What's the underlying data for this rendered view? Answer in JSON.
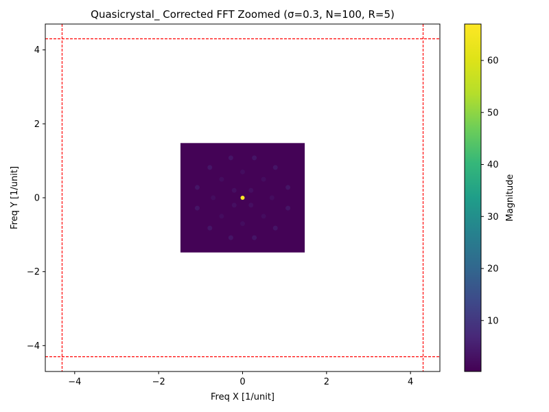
{
  "chart_data": {
    "type": "heatmap",
    "title": "Quasicrystal_ Corrected FFT Zoomed (σ=0.3, N=100, R=5)",
    "xlabel": "Freq X [1/unit]",
    "ylabel": "Freq Y [1/unit]",
    "xlim": [
      -4.7,
      4.7
    ],
    "ylim": [
      -4.7,
      4.7
    ],
    "x_ticks": [
      -4,
      -2,
      0,
      2,
      4
    ],
    "y_ticks": [
      -4,
      -2,
      0,
      2,
      4
    ],
    "x_tick_labels": [
      "−4",
      "−2",
      "0",
      "2",
      "4"
    ],
    "y_tick_labels": [
      "−4",
      "−2",
      "0",
      "2",
      "4"
    ],
    "grid": false,
    "heatmap_extent": {
      "x": [
        -1.48,
        1.48
      ],
      "y": [
        -1.48,
        1.48
      ]
    },
    "background_magnitude": 0.5,
    "peaks": [
      {
        "x": 0.0,
        "y": 0.0,
        "magnitude": 67
      },
      {
        "x": -0.28,
        "y": 1.08,
        "magnitude": 4
      },
      {
        "x": 0.28,
        "y": 1.08,
        "magnitude": 4
      },
      {
        "x": -0.78,
        "y": 0.82,
        "magnitude": 4
      },
      {
        "x": 0.78,
        "y": 0.82,
        "magnitude": 4
      },
      {
        "x": -1.08,
        "y": 0.28,
        "magnitude": 4
      },
      {
        "x": 1.08,
        "y": 0.28,
        "magnitude": 4
      },
      {
        "x": -1.08,
        "y": -0.28,
        "magnitude": 4
      },
      {
        "x": 1.08,
        "y": -0.28,
        "magnitude": 4
      },
      {
        "x": -0.78,
        "y": -0.82,
        "magnitude": 4
      },
      {
        "x": 0.78,
        "y": -0.82,
        "magnitude": 4
      },
      {
        "x": -0.28,
        "y": -1.08,
        "magnitude": 4
      },
      {
        "x": 0.28,
        "y": -1.08,
        "magnitude": 4
      },
      {
        "x": -0.5,
        "y": 0.5,
        "magnitude": 2.5
      },
      {
        "x": 0.5,
        "y": 0.5,
        "magnitude": 2.5
      },
      {
        "x": -0.5,
        "y": -0.5,
        "magnitude": 2.5
      },
      {
        "x": 0.5,
        "y": -0.5,
        "magnitude": 2.5
      },
      {
        "x": 0.0,
        "y": 0.7,
        "magnitude": 2.5
      },
      {
        "x": 0.0,
        "y": -0.7,
        "magnitude": 2.5
      },
      {
        "x": -0.7,
        "y": 0.0,
        "magnitude": 2.5
      },
      {
        "x": 0.7,
        "y": 0.0,
        "magnitude": 2.5
      },
      {
        "x": -0.2,
        "y": 0.2,
        "magnitude": 3
      },
      {
        "x": 0.2,
        "y": 0.2,
        "magnitude": 3
      },
      {
        "x": -0.2,
        "y": -0.2,
        "magnitude": 3
      },
      {
        "x": 0.2,
        "y": -0.2,
        "magnitude": 3
      }
    ],
    "reference_lines": {
      "color": "#ff0000",
      "style": "dashed",
      "vertical_x": [
        -4.3,
        4.3
      ],
      "horizontal_y": [
        -4.3,
        4.3
      ]
    },
    "colorbar": {
      "label": "Magnitude",
      "colormap": "viridis",
      "range": [
        0.2,
        67
      ],
      "ticks": [
        10,
        20,
        30,
        40,
        50,
        60
      ],
      "tick_labels": [
        "10",
        "20",
        "30",
        "40",
        "50",
        "60"
      ]
    }
  }
}
